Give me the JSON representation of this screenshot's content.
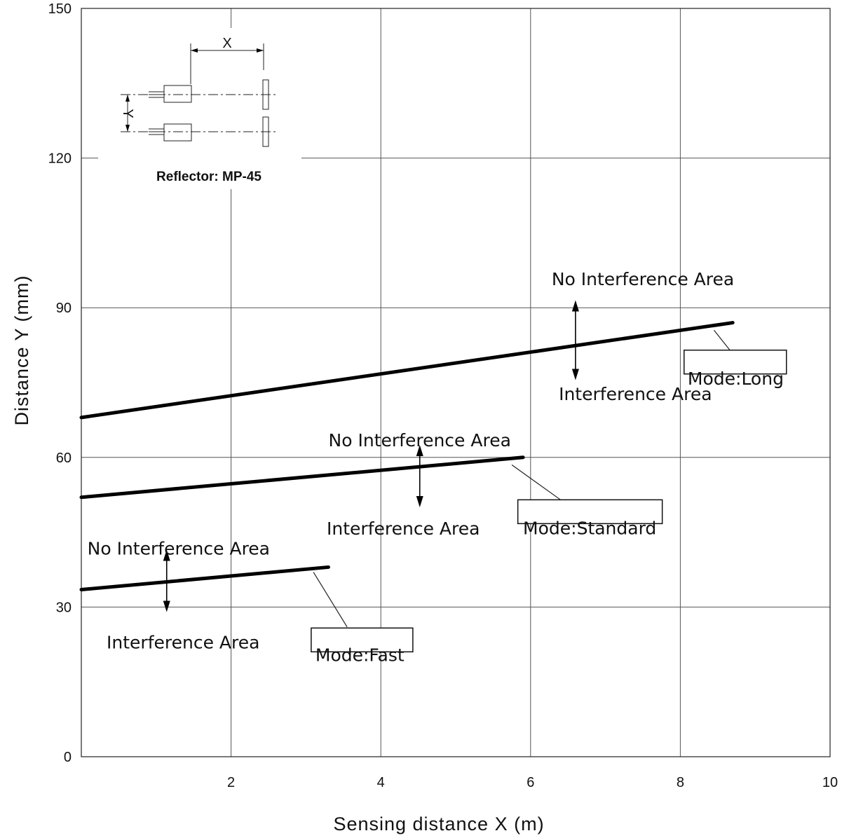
{
  "chart_data": {
    "type": "line",
    "xlabel": "Sensing distance X (m)",
    "ylabel": "Distance Y (mm)",
    "xlim": [
      0,
      10
    ],
    "ylim": [
      0,
      150
    ],
    "x_ticks": [
      "2",
      "4",
      "6",
      "8",
      "10"
    ],
    "y_ticks": [
      "0",
      "30",
      "60",
      "90",
      "120",
      "150"
    ],
    "grid": true,
    "series": [
      {
        "name": "Mode:Long",
        "x": [
          0,
          8.7
        ],
        "y": [
          68,
          87
        ]
      },
      {
        "name": "Mode:Standard",
        "x": [
          0,
          5.9
        ],
        "y": [
          52,
          60
        ]
      },
      {
        "name": "Mode:Fast",
        "x": [
          0,
          3.3
        ],
        "y": [
          33.5,
          38
        ]
      }
    ],
    "annotations": [
      {
        "upper": "No Interference Area",
        "lower": "Interference Area",
        "series": "Mode:Long"
      },
      {
        "upper": "No Interference Area",
        "lower": "Interference Area",
        "series": "Mode:Standard"
      },
      {
        "upper": "No Interference Area",
        "lower": "Interference Area",
        "series": "Mode:Fast"
      }
    ],
    "inset": {
      "x_label": "X",
      "y_label": "Y",
      "caption": "Reflector: MP-45"
    }
  }
}
